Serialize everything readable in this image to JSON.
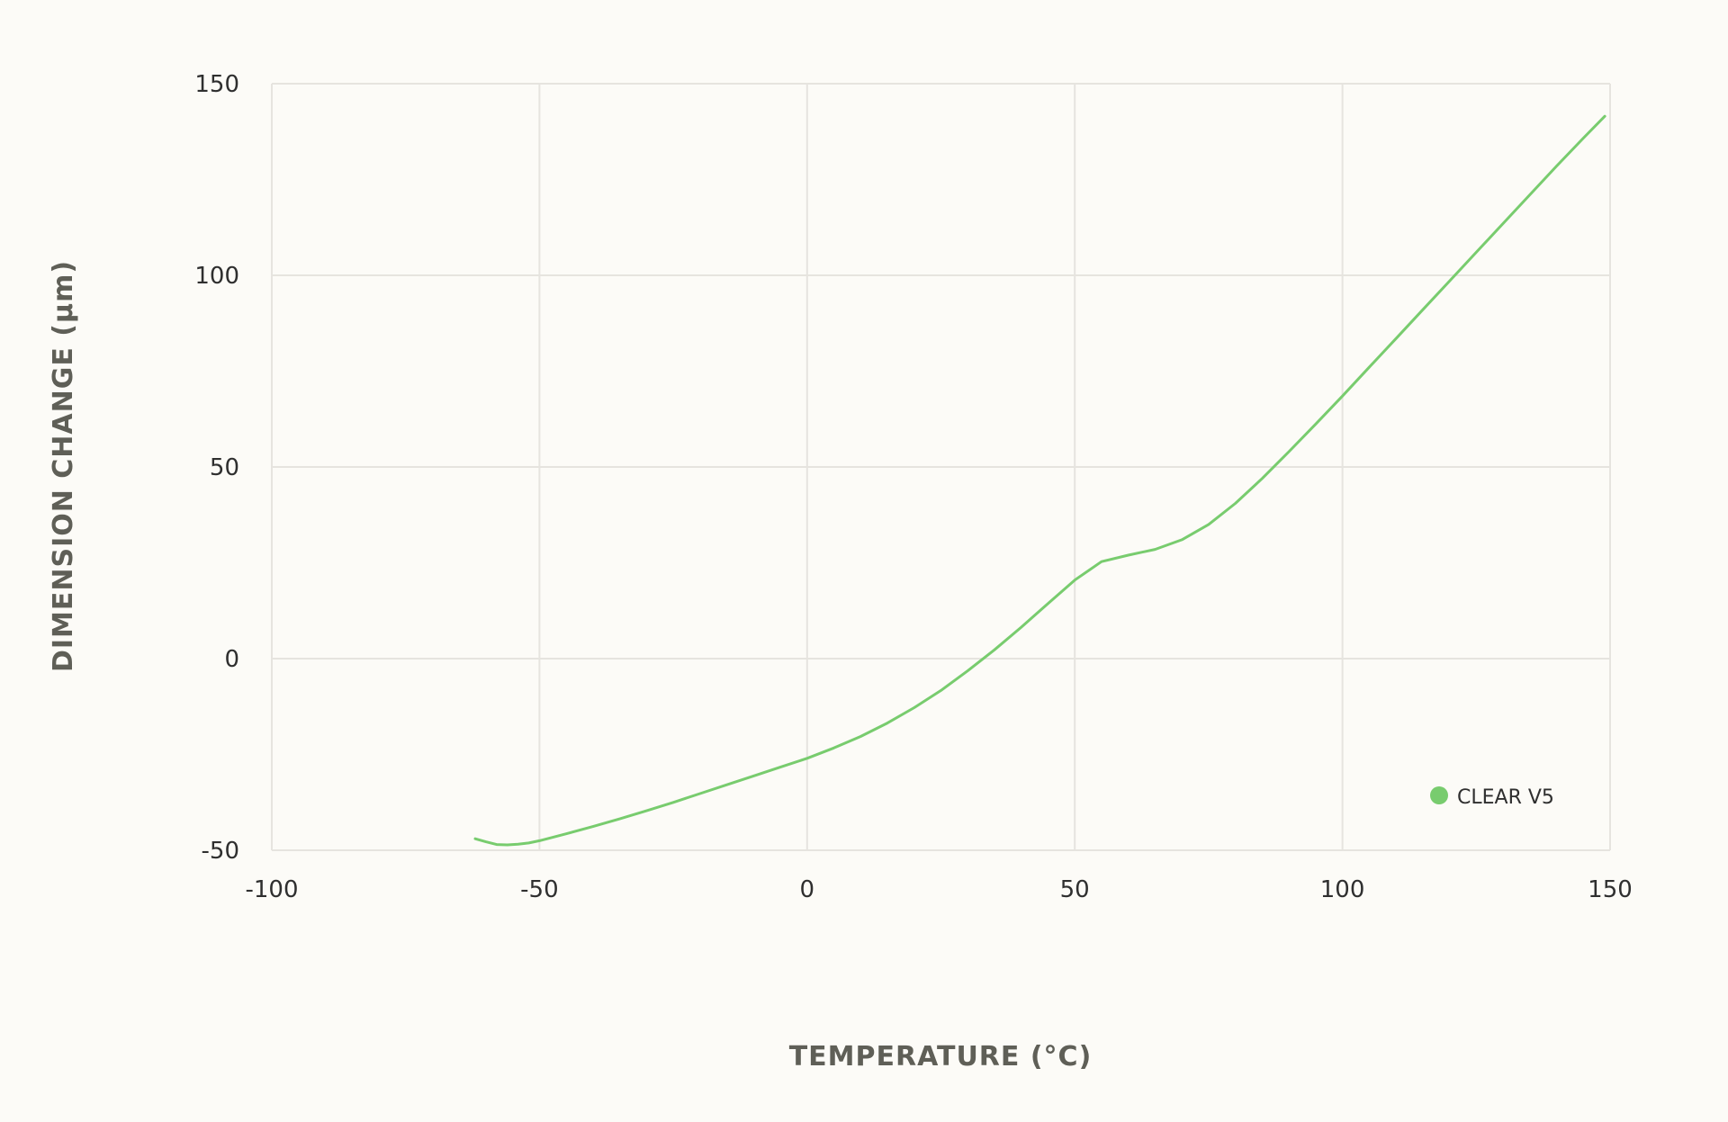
{
  "chart_data": {
    "type": "line",
    "title": "",
    "xlabel": "TEMPERATURE (°C)",
    "ylabel": "DIMENSION CHANGE (µm)",
    "xlim": [
      -100,
      150
    ],
    "ylim": [
      -50,
      150
    ],
    "x_ticks": [
      "-100",
      "-50",
      "0",
      "50",
      "100",
      "150"
    ],
    "y_ticks": [
      "150",
      "100",
      "50",
      "0",
      "-50"
    ],
    "grid": true,
    "legend_position": "bottom-right",
    "colors": {
      "series": "#78cc6e",
      "grid": "#e6e4df",
      "text": "#2f2f2f",
      "axis_title": "#5f5f57"
    },
    "series": [
      {
        "name": "CLEAR V5",
        "x": [
          -62,
          -60,
          -58,
          -56,
          -54,
          -52,
          -50,
          -45,
          -40,
          -35,
          -30,
          -25,
          -20,
          -15,
          -10,
          -5,
          0,
          5,
          10,
          15,
          20,
          25,
          30,
          35,
          40,
          45,
          50,
          55,
          60,
          65,
          70,
          75,
          80,
          85,
          90,
          95,
          100,
          105,
          110,
          115,
          120,
          125,
          130,
          135,
          140,
          145,
          149
        ],
        "values": [
          -47,
          -47.8,
          -48.5,
          -48.6,
          -48.4,
          -48.1,
          -47.5,
          -45.7,
          -43.8,
          -41.8,
          -39.7,
          -37.5,
          -35.2,
          -32.9,
          -30.6,
          -28.3,
          -26,
          -23.3,
          -20.3,
          -16.8,
          -12.8,
          -8.3,
          -3.2,
          2.3,
          8.2,
          14.4,
          20.5,
          25.3,
          27,
          28.5,
          31,
          35,
          40.5,
          47,
          54,
          61.2,
          68.5,
          76,
          83.5,
          91,
          98.5,
          106,
          113.5,
          121,
          128.5,
          135.8,
          141.5
        ]
      }
    ]
  }
}
